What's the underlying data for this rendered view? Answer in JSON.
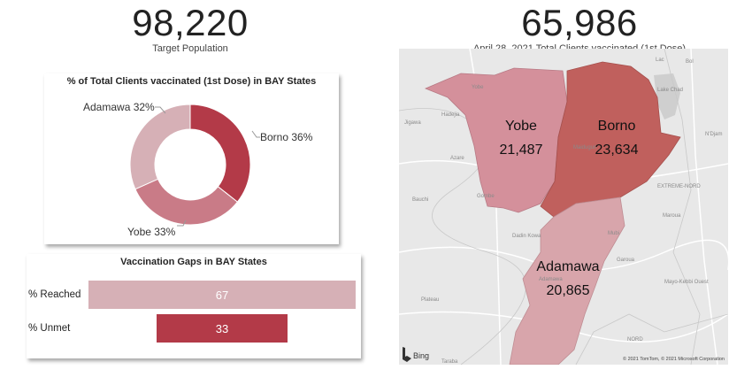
{
  "kpi_target": {
    "value": "98,220",
    "label": "Target Population"
  },
  "kpi_vaccinated": {
    "value": "65,986",
    "label": "April 28, 2021 Total Clients vaccinated (1st Dose)"
  },
  "donut": {
    "title": "% of Total Clients vaccinated (1st Dose) in BAY States",
    "labels": [
      "Borno 36%",
      "Yobe 33%",
      "Adamawa 32%"
    ]
  },
  "gaps": {
    "title": "Vaccination Gaps in BAY States",
    "rows": [
      {
        "label": "% Reached",
        "value": "67"
      },
      {
        "label": "% Unmet",
        "value": "33"
      }
    ]
  },
  "map": {
    "states": [
      {
        "name": "Yobe",
        "value": "21,487"
      },
      {
        "name": "Borno",
        "value": "23,634"
      },
      {
        "name": "Adamawa",
        "value": "20,865"
      }
    ],
    "place_labels": [
      "Yobe",
      "Jigawa",
      "Hadejia",
      "Azare",
      "Gombe",
      "Bauchi",
      "Plateau",
      "Taraba",
      "Maiduguri",
      "Lac",
      "Bol",
      "Lake Chad",
      "N'Djam",
      "EXTREME-NORD",
      "Maroua",
      "Garoua",
      "Mayo-Kebbi Ouest",
      "NORD",
      "Mubi",
      "Dadin Kowa",
      "Adamawa"
    ],
    "bing_label": "Bing",
    "copyright": "© 2021 TomTom, © 2021 Microsoft Corporation"
  },
  "chart_data": [
    {
      "type": "pie",
      "title": "% of Total Clients vaccinated (1st Dose) in BAY States",
      "categories": [
        "Borno",
        "Yobe",
        "Adamawa"
      ],
      "values": [
        36,
        33,
        32
      ],
      "colors": [
        "#b33a48",
        "#c97b87",
        "#d6b0b6"
      ]
    },
    {
      "type": "bar",
      "title": "Vaccination Gaps in BAY States",
      "categories": [
        "% Reached",
        "% Unmet"
      ],
      "values": [
        67,
        33
      ],
      "colors": [
        "#d6b0b6",
        "#b33a48"
      ]
    }
  ]
}
